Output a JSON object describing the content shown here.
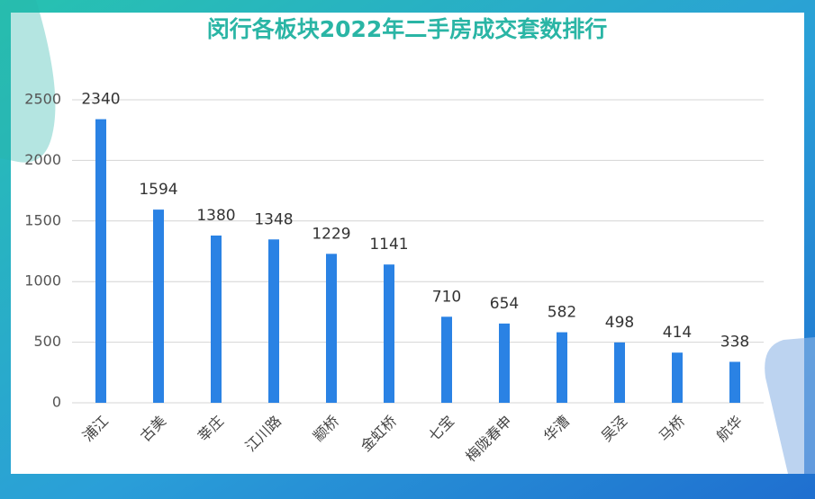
{
  "chart_data": {
    "type": "bar",
    "title": "闵行各板块2022年二手房成交套数排行",
    "categories": [
      "浦江",
      "古美",
      "莘庄",
      "江川路",
      "颛桥",
      "金虹桥",
      "七宝",
      "梅陇春申",
      "华漕",
      "吴泾",
      "马桥",
      "航华"
    ],
    "values": [
      2340,
      1594,
      1380,
      1348,
      1229,
      1141,
      710,
      654,
      582,
      498,
      414,
      338
    ],
    "color": "#2a82e4",
    "ylim": [
      0,
      2500
    ],
    "yticks": [
      0,
      500,
      1000,
      1500,
      2000,
      2500
    ],
    "grid": true
  }
}
